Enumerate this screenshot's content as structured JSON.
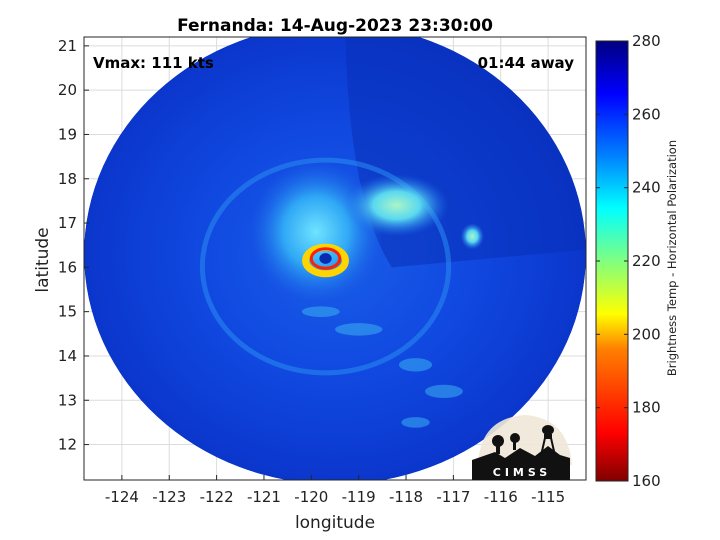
{
  "title": "Fernanda: 14-Aug-2023 23:30:00",
  "vmax_label": "Vmax: 111 kts",
  "time_away_label": "01:44 away",
  "logo_text": "CIMSS",
  "chart_data": {
    "type": "heatmap",
    "title": "Fernanda: 14-Aug-2023 23:30:00",
    "xlabel": "longitude",
    "ylabel": "latitude",
    "xlim": [
      -124.8,
      -114.2
    ],
    "ylim": [
      11.2,
      21.2
    ],
    "xticks": [
      -124,
      -123,
      -122,
      -121,
      -120,
      -119,
      -118,
      -117,
      -116,
      -115
    ],
    "yticks": [
      12,
      13,
      14,
      15,
      16,
      17,
      18,
      19,
      20,
      21
    ],
    "grid": true,
    "colorbar": {
      "label": "Brightness Temp - Horizontal Polarization",
      "min": 160,
      "max": 280,
      "ticks": [
        160,
        180,
        200,
        220,
        240,
        260,
        280
      ],
      "colormap": "jet"
    },
    "storm_center": {
      "lon": -119.7,
      "lat": 16.2
    },
    "data_extent": {
      "center_lon": -119.5,
      "center_lat": 16.3,
      "lon_radius": 5.3,
      "lat_radius": 5.2
    },
    "features": [
      {
        "name": "eyewall",
        "lon": -119.7,
        "lat": 16.2,
        "tb": 185
      },
      {
        "name": "inner core convection",
        "lon": -119.9,
        "lat": 16.8,
        "tb": 228
      },
      {
        "name": "northeast band",
        "lon": -118.2,
        "lat": 17.4,
        "tb": 232
      },
      {
        "name": "eastern cell",
        "lon": -116.6,
        "lat": 16.7,
        "tb": 236
      },
      {
        "name": "background",
        "tb": 258
      }
    ]
  },
  "colors": {
    "background": "#ffffff",
    "axes_frame": "#262626",
    "grid": "#dcdcdc",
    "jet_stops": [
      "#800000",
      "#ff0000",
      "#ff8000",
      "#ffff00",
      "#80ff80",
      "#00ffff",
      "#0080ff",
      "#0000ff",
      "#000080"
    ]
  }
}
